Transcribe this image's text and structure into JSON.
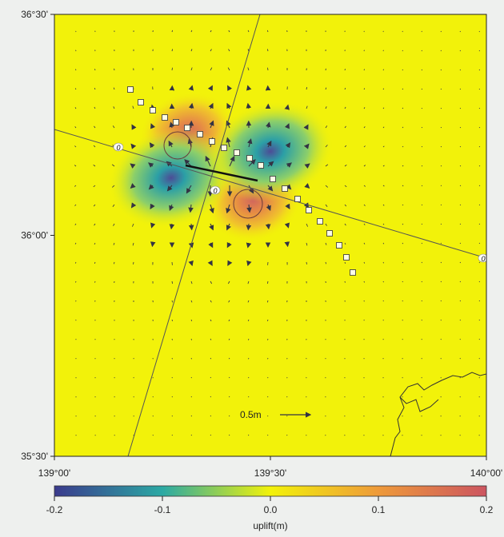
{
  "chart_data": {
    "type": "heatmap",
    "title": "",
    "xlim": [
      139.0,
      140.0
    ],
    "ylim": [
      35.5,
      36.5
    ],
    "x_ticks": [
      {
        "value": 139.0,
        "label": "139°00'"
      },
      {
        "value": 139.5,
        "label": "139°30'"
      },
      {
        "value": 140.0,
        "label": "140°00'"
      }
    ],
    "y_ticks": [
      {
        "value": 36.5,
        "label": "36°30'"
      },
      {
        "value": 36.0,
        "label": "36°00'"
      },
      {
        "value": 35.5,
        "label": "35°30'"
      }
    ],
    "colorbar": {
      "label": "uplift(m)",
      "min": -0.2,
      "max": 0.2,
      "ticks": [
        "-0.2",
        "-0.1",
        "0.0",
        "0.1",
        "0.2"
      ],
      "colors": [
        "#3a3a8c",
        "#2ba9a4",
        "#f2f20a",
        "#ee9a3a",
        "#cc5560"
      ]
    },
    "uplift_lobes": [
      {
        "sign": "positive",
        "lon": 139.31,
        "lat": 36.23,
        "value": 0.12
      },
      {
        "sign": "positive",
        "lon": 139.46,
        "lat": 36.08,
        "value": 0.12
      },
      {
        "sign": "negative",
        "lon": 139.27,
        "lat": 36.13,
        "value": -0.13
      },
      {
        "sign": "negative",
        "lon": 139.5,
        "lat": 36.19,
        "value": -0.12
      }
    ],
    "zero_contour_labels": [
      "0",
      "0",
      "0"
    ],
    "scale_arrow_label": "0.5m",
    "colors": {
      "background": "#f2f20a",
      "station_fill": "#fffde6",
      "line": "#555555",
      "arrow": "#333344"
    }
  }
}
